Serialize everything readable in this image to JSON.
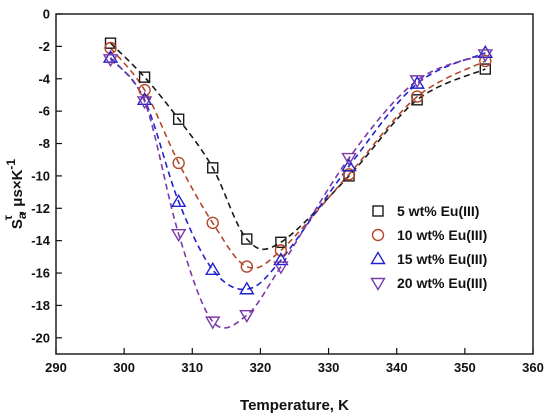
{
  "chart_data": {
    "type": "scatter",
    "xlabel": "Temperature, K",
    "ylabel": {
      "base": "S",
      "sub": "a",
      "sup": "τ",
      "units": ", μs×K",
      "units_sup": "-1"
    },
    "xlim": [
      290,
      360
    ],
    "ylim": [
      -21,
      0
    ],
    "x_ticks": [
      290,
      300,
      310,
      320,
      330,
      340,
      350,
      360
    ],
    "y_ticks": [
      0,
      -2,
      -4,
      -6,
      -8,
      -10,
      -12,
      -14,
      -16,
      -18,
      -20
    ],
    "grid": false,
    "legend_position": "right",
    "series": [
      {
        "name": "5 wt% Eu(III)",
        "marker": "square",
        "color": "#1a1a1a",
        "line_style": "dashed",
        "x": [
          298,
          303,
          308,
          313,
          318,
          323,
          333,
          343,
          353
        ],
        "y": [
          -1.8,
          -3.9,
          -6.5,
          -9.5,
          -13.9,
          -14.1,
          -10.0,
          -5.3,
          -3.4
        ]
      },
      {
        "name": "10 wt% Eu(III)",
        "marker": "circle",
        "color": "#b5472a",
        "line_style": "dashed",
        "x": [
          298,
          303,
          308,
          313,
          318,
          323,
          333,
          343,
          353
        ],
        "y": [
          -2.1,
          -4.7,
          -9.2,
          -12.9,
          -15.6,
          -14.6,
          -9.9,
          -5.1,
          -2.9
        ]
      },
      {
        "name": "15 wt% Eu(III)",
        "marker": "triangle-up",
        "color": "#2222cc",
        "line_style": "dashed",
        "x": [
          298,
          303,
          308,
          313,
          318,
          323,
          333,
          343,
          353
        ],
        "y": [
          -2.7,
          -5.3,
          -11.6,
          -15.8,
          -17.0,
          -15.2,
          -9.4,
          -4.3,
          -2.4
        ]
      },
      {
        "name": "20 wt% Eu(III)",
        "marker": "triangle-down",
        "color": "#7a3aa8",
        "line_style": "dashed",
        "x": [
          298,
          303,
          308,
          313,
          318,
          323,
          333,
          343,
          353
        ],
        "y": [
          -2.8,
          -5.4,
          -13.6,
          -19.0,
          -18.6,
          -15.6,
          -8.9,
          -4.1,
          -2.5
        ]
      }
    ]
  }
}
